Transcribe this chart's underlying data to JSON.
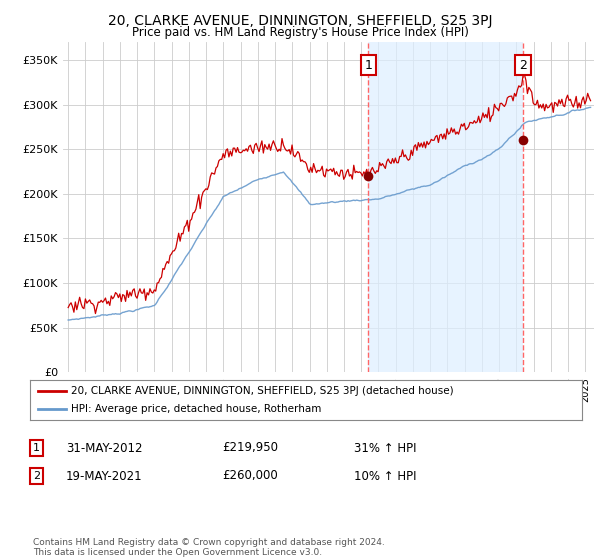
{
  "title": "20, CLARKE AVENUE, DINNINGTON, SHEFFIELD, S25 3PJ",
  "subtitle": "Price paid vs. HM Land Registry's House Price Index (HPI)",
  "ylabel_ticks": [
    "£0",
    "£50K",
    "£100K",
    "£150K",
    "£200K",
    "£250K",
    "£300K",
    "£350K"
  ],
  "ytick_values": [
    0,
    50000,
    100000,
    150000,
    200000,
    250000,
    300000,
    350000
  ],
  "ylim": [
    0,
    370000
  ],
  "xlim_start": 1994.7,
  "xlim_end": 2025.5,
  "property_color": "#cc0000",
  "hpi_color": "#6699cc",
  "hpi_fill_color": "#ddeeff",
  "marker1_x": 2012.42,
  "marker1_y": 219950,
  "marker2_x": 2021.38,
  "marker2_y": 260000,
  "legend_line1": "20, CLARKE AVENUE, DINNINGTON, SHEFFIELD, S25 3PJ (detached house)",
  "legend_line2": "HPI: Average price, detached house, Rotherham",
  "footer": "Contains HM Land Registry data © Crown copyright and database right 2024.\nThis data is licensed under the Open Government Licence v3.0."
}
